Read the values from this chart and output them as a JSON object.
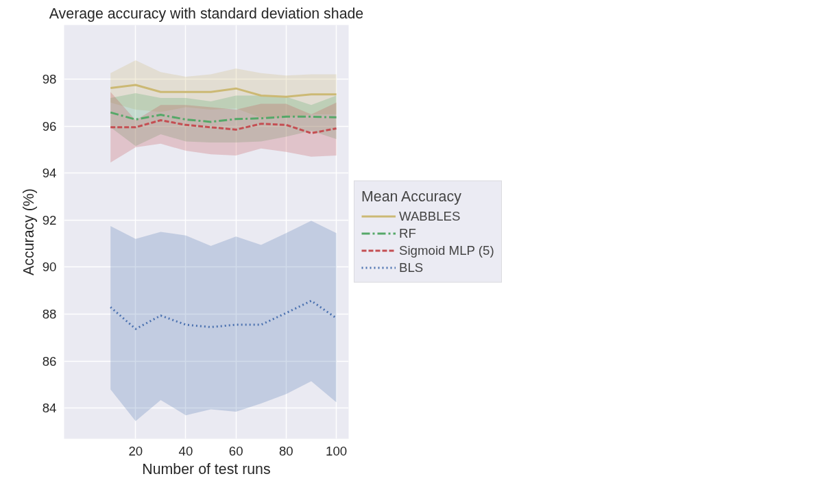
{
  "chart_data": {
    "type": "line",
    "title": "Average accuracy with standard deviation shade",
    "xlabel": "Number of test runs",
    "ylabel": "Accuracy (%)",
    "legend_title": "Mean Accuracy",
    "x": [
      10,
      20,
      30,
      40,
      50,
      60,
      70,
      80,
      90,
      100
    ],
    "xlim": [
      -8.5,
      104.9
    ],
    "xticks": [
      20,
      40,
      60,
      80,
      100
    ],
    "ylim": [
      82.7,
      100.3
    ],
    "yticks": [
      84,
      86,
      88,
      90,
      92,
      94,
      96,
      98
    ],
    "grid": true,
    "legend": "right",
    "series": [
      {
        "name": "WABBLES",
        "color": "#ccb974",
        "line_style": "solid",
        "values": [
          97.62,
          97.75,
          97.45,
          97.45,
          97.45,
          97.6,
          97.3,
          97.25,
          97.35,
          97.35
        ],
        "upper": [
          98.25,
          98.8,
          98.3,
          98.1,
          98.2,
          98.45,
          98.25,
          98.15,
          98.2,
          98.2
        ],
        "lower": [
          97.0,
          96.7,
          96.6,
          96.8,
          96.7,
          96.75,
          96.35,
          96.35,
          96.5,
          96.5
        ]
      },
      {
        "name": "RF",
        "color": "#55a868",
        "line_style": "dashdot",
        "values": [
          96.58,
          96.28,
          96.48,
          96.28,
          96.18,
          96.3,
          96.33,
          96.4,
          96.4,
          96.37
        ],
        "upper": [
          97.2,
          97.4,
          97.2,
          97.2,
          97.05,
          97.3,
          97.3,
          97.25,
          96.9,
          97.3
        ],
        "lower": [
          95.95,
          95.15,
          95.65,
          95.35,
          95.3,
          95.3,
          95.35,
          95.55,
          95.8,
          95.45
        ]
      },
      {
        "name": "Sigmoid MLP (5)",
        "color": "#c44e52",
        "line_style": "dashed",
        "values": [
          95.95,
          95.95,
          96.25,
          96.05,
          95.95,
          95.85,
          96.1,
          96.05,
          95.7,
          95.9
        ],
        "upper": [
          97.45,
          96.25,
          96.9,
          96.9,
          96.8,
          96.7,
          96.95,
          96.95,
          96.5,
          97.0
        ],
        "lower": [
          94.45,
          95.1,
          95.25,
          94.95,
          94.8,
          94.75,
          95.05,
          94.9,
          94.7,
          94.75
        ]
      },
      {
        "name": "BLS",
        "color": "#4c72b0",
        "line_style": "dotted",
        "values": [
          88.3,
          87.37,
          87.94,
          87.55,
          87.45,
          87.55,
          87.55,
          88.05,
          88.57,
          87.83
        ],
        "upper": [
          91.75,
          91.2,
          91.5,
          91.35,
          90.9,
          91.3,
          90.95,
          91.45,
          91.97,
          91.45
        ],
        "lower": [
          84.8,
          83.45,
          84.35,
          83.7,
          83.95,
          83.85,
          84.2,
          84.6,
          85.15,
          84.25
        ]
      }
    ]
  }
}
